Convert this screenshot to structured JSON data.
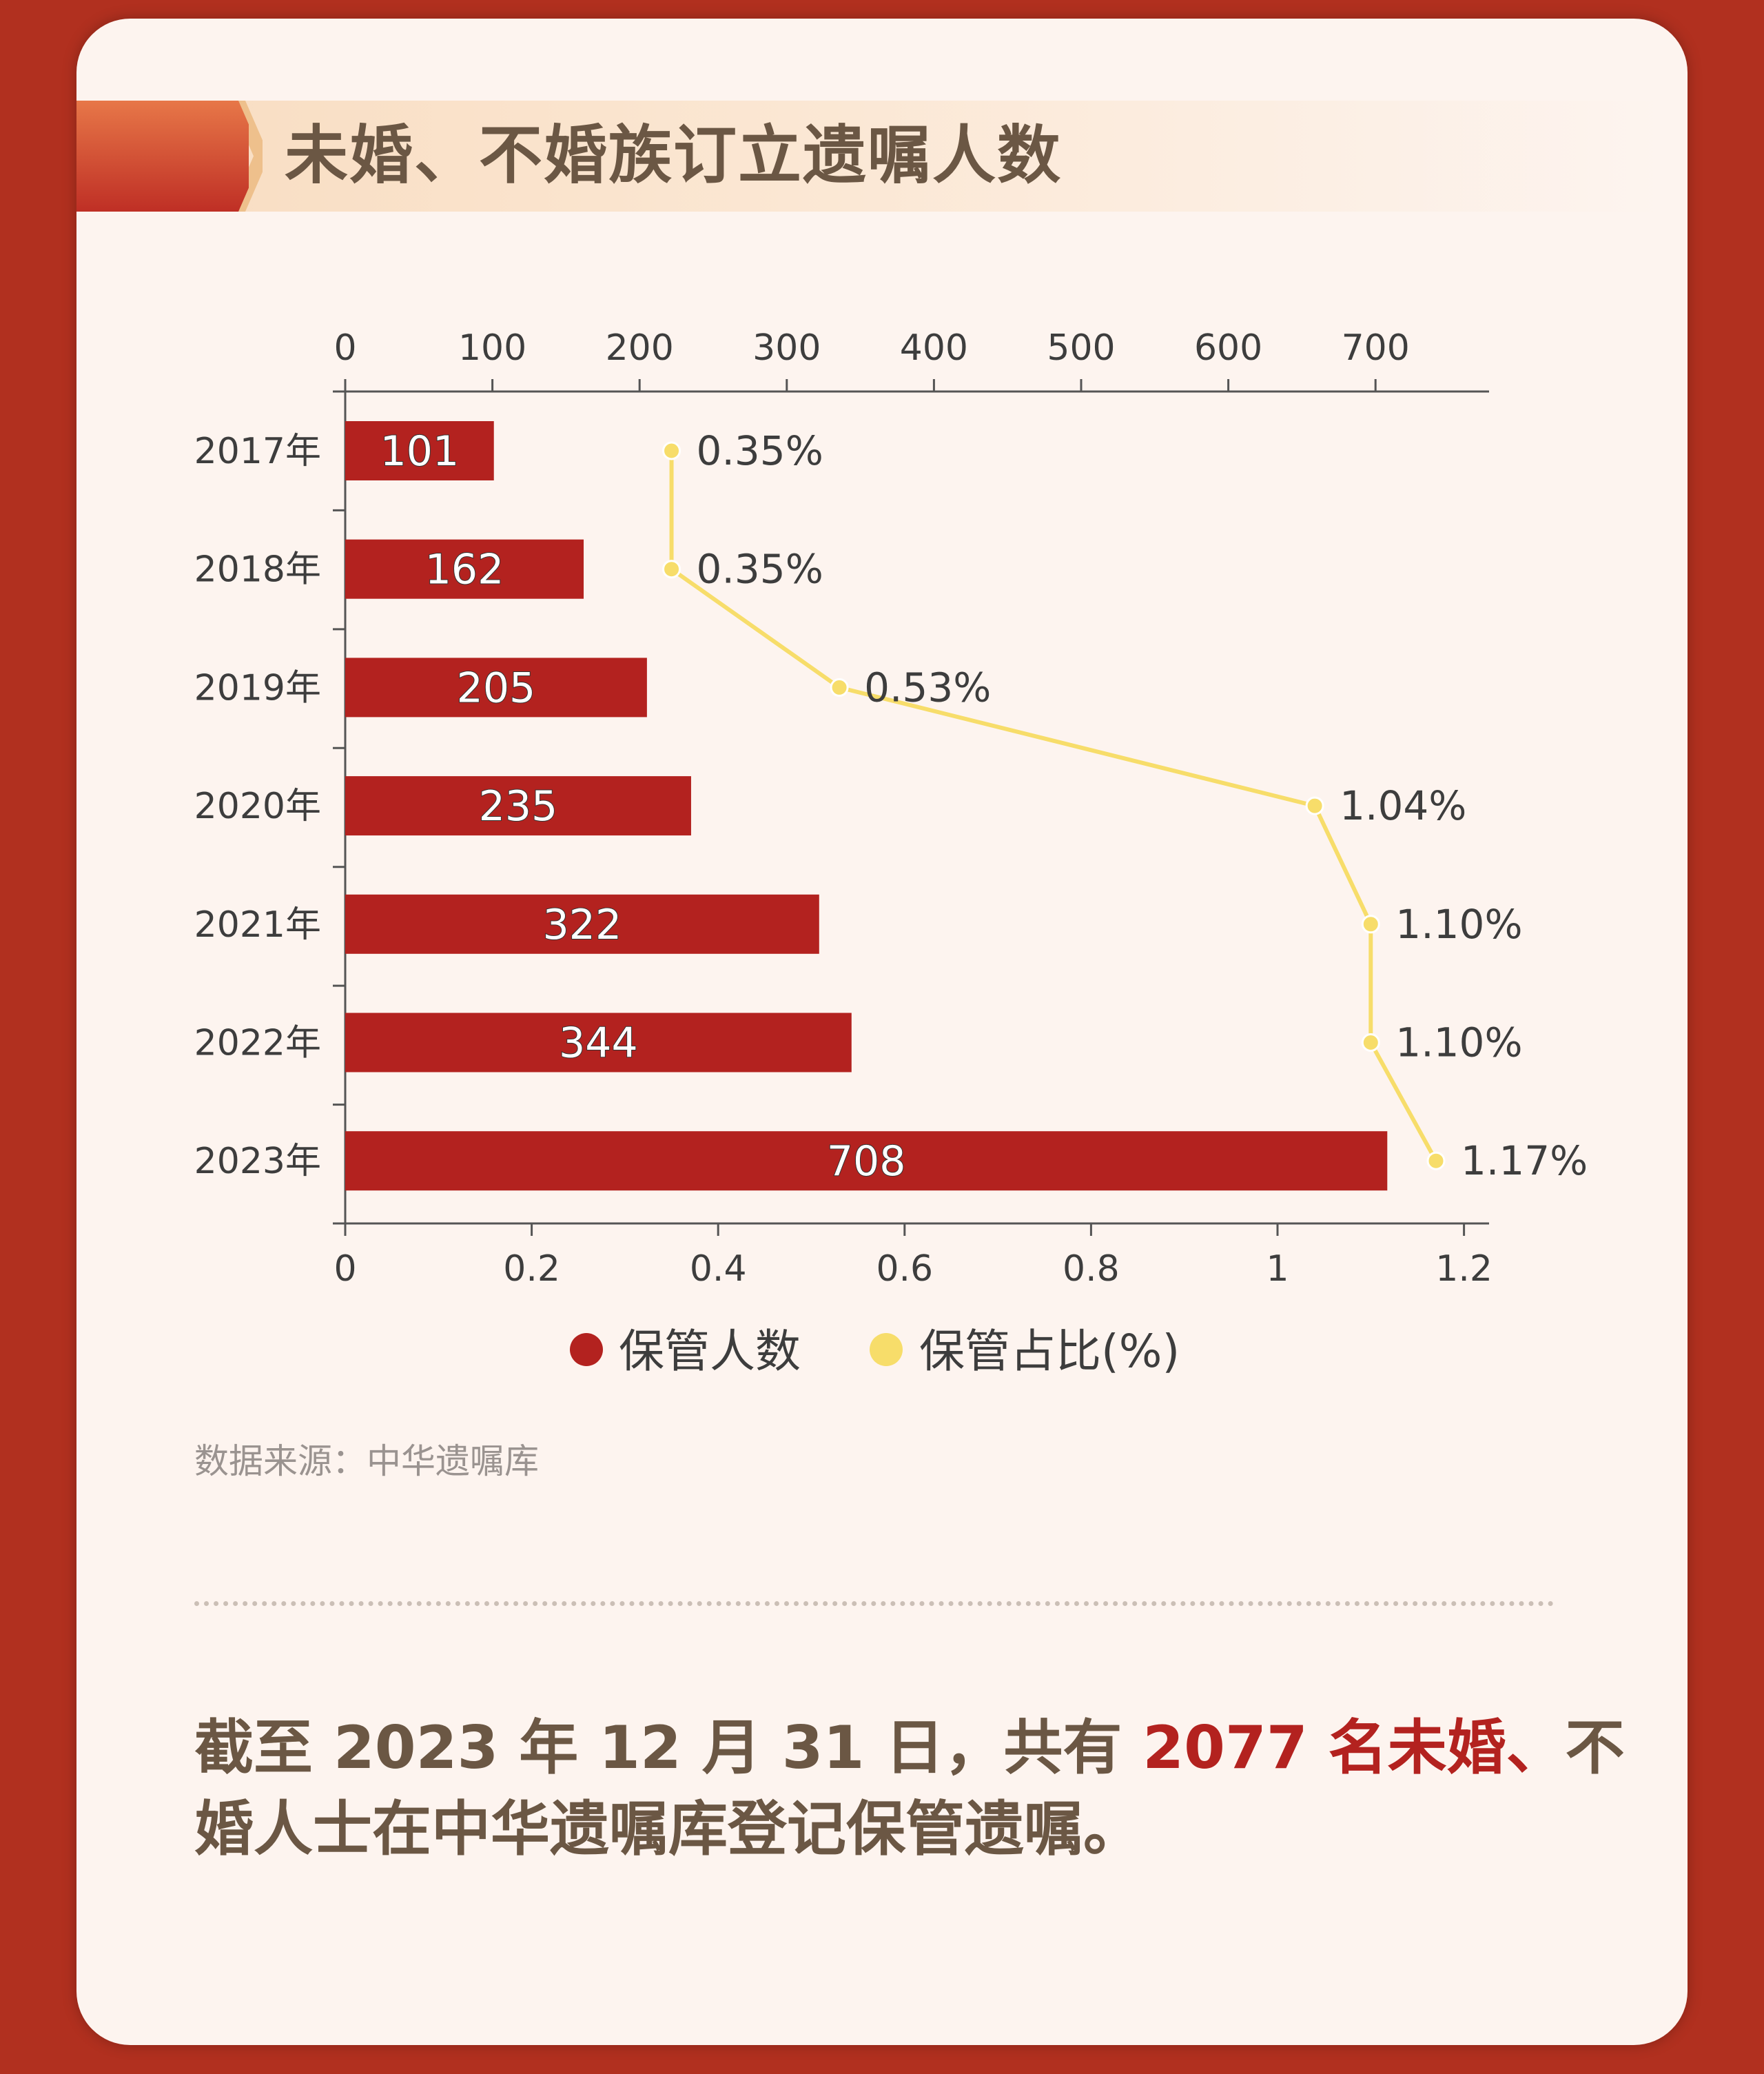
{
  "title": "未婚、不婚族订立遗嘱人数",
  "source": "数据来源：中华遗嘱库",
  "summary": {
    "part1": "截至 2023 年 12 月 31 日，共有 ",
    "highlight": "2077 名未婚、",
    "part2": "不婚人士在中华遗嘱库登记保管遗嘱。"
  },
  "colors": {
    "bar": "#b3221f",
    "line": "#f7dd6a",
    "text": "#3d3d3d",
    "axis": "#555555"
  },
  "chart_data": {
    "type": "bar+line",
    "orientation": "horizontal",
    "categories": [
      "2017年",
      "2018年",
      "2019年",
      "2020年",
      "2021年",
      "2022年",
      "2023年"
    ],
    "series": [
      {
        "name": "保管人数",
        "type": "bar",
        "axis": "top",
        "values": [
          101,
          162,
          205,
          235,
          322,
          344,
          708
        ],
        "labels": [
          "101",
          "162",
          "205",
          "235",
          "322",
          "344",
          "708"
        ]
      },
      {
        "name": "保管占比(%)",
        "type": "line",
        "axis": "bottom",
        "values": [
          0.35,
          0.35,
          0.53,
          1.04,
          1.1,
          1.1,
          1.17
        ],
        "labels": [
          "0.35%",
          "0.35%",
          "0.53%",
          "1.04%",
          "1.10%",
          "1.10%",
          "1.17%"
        ]
      }
    ],
    "top_axis": {
      "range": [
        0,
        780
      ],
      "ticks": [
        0,
        100,
        200,
        300,
        400,
        500,
        600,
        700
      ],
      "tick_labels": [
        "0",
        "100",
        "200",
        "300",
        "400",
        "500",
        "600",
        "700"
      ]
    },
    "bottom_axis": {
      "range": [
        0,
        1.22
      ],
      "ticks": [
        0,
        0.2,
        0.4,
        0.6,
        0.8,
        1,
        1.2
      ],
      "tick_labels": [
        "0",
        "0.2",
        "0.4",
        "0.6",
        "0.8",
        "1",
        "1.2"
      ]
    },
    "legend": {
      "position": "bottom",
      "items": [
        "保管人数",
        "保管占比(%)"
      ]
    }
  }
}
